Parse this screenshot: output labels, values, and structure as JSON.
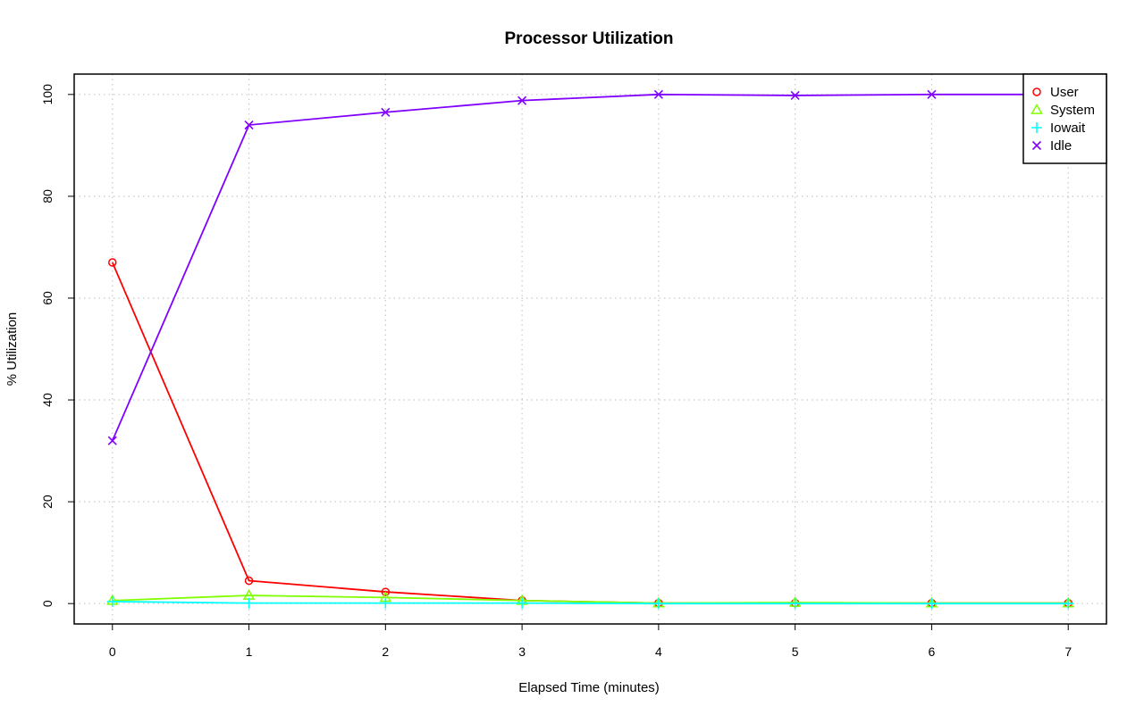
{
  "chart_data": {
    "type": "line",
    "title": "Processor Utilization",
    "xlabel": "Elapsed Time (minutes)",
    "ylabel": "% Utilization",
    "x": [
      0,
      1,
      2,
      3,
      4,
      5,
      6,
      7
    ],
    "xlim": [
      -0.28,
      7.28
    ],
    "ylim": [
      -4,
      104
    ],
    "xticks": [
      0,
      1,
      2,
      3,
      4,
      5,
      6,
      7
    ],
    "yticks": [
      0,
      20,
      40,
      60,
      80,
      100
    ],
    "grid": true,
    "legend_position": "top-right",
    "series": [
      {
        "name": "User",
        "color": "#ff0000",
        "marker": "circle",
        "values": [
          67,
          4.5,
          2.3,
          0.6,
          0.1,
          0.1,
          0.1,
          0.1
        ]
      },
      {
        "name": "System",
        "color": "#80ff00",
        "marker": "triangle",
        "values": [
          0.6,
          1.6,
          1.2,
          0.6,
          0.1,
          0.2,
          0.1,
          0.1
        ]
      },
      {
        "name": "Iowait",
        "color": "#00ffff",
        "marker": "plus",
        "values": [
          0.4,
          0.1,
          0.1,
          0.1,
          0.0,
          0.0,
          0.0,
          0.0
        ]
      },
      {
        "name": "Idle",
        "color": "#8000ff",
        "marker": "cross",
        "values": [
          32,
          94,
          96.5,
          98.8,
          100,
          99.8,
          100,
          100
        ]
      }
    ]
  }
}
